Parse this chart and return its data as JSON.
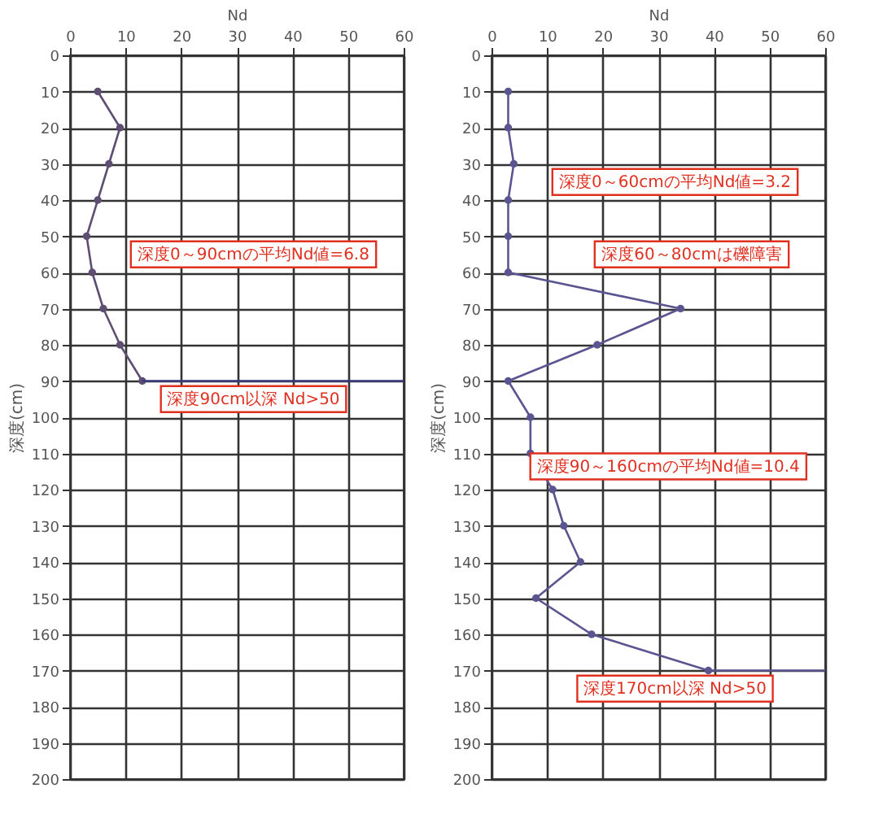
{
  "chart_data": [
    {
      "type": "line",
      "xlabel": "Nd",
      "ylabel": "深度(cm)",
      "xlim": [
        0,
        60
      ],
      "xticks": [
        0,
        10,
        20,
        30,
        40,
        50,
        60
      ],
      "ylim": [
        200,
        0
      ],
      "yticks": [
        0,
        10,
        20,
        30,
        40,
        50,
        60,
        70,
        80,
        90,
        100,
        110,
        120,
        130,
        140,
        150,
        160,
        170,
        180,
        190,
        200
      ],
      "grid": true,
      "line_style": "solid",
      "annotations": [
        "深度0～90cmの平均Nd値=6.8",
        "深度90cm以深 Nd>50"
      ],
      "series": [
        {
          "color": "#5e4f72",
          "marker": "circle",
          "x": [
            5,
            9,
            7,
            5,
            3,
            4,
            6,
            9,
            13
          ],
          "values": [
            10,
            20,
            30,
            40,
            50,
            60,
            70,
            80,
            90
          ]
        },
        {
          "color": "#3a3a80",
          "marker": "none",
          "x": [
            13,
            60
          ],
          "values": [
            90,
            90
          ]
        }
      ]
    },
    {
      "type": "line",
      "xlabel": "Nd",
      "ylabel": "深度(cm)",
      "xlim": [
        0,
        60
      ],
      "xticks": [
        0,
        10,
        20,
        30,
        40,
        50,
        60
      ],
      "ylim": [
        200,
        0
      ],
      "yticks": [
        0,
        10,
        20,
        30,
        40,
        50,
        60,
        70,
        80,
        90,
        100,
        110,
        120,
        130,
        140,
        150,
        160,
        170,
        180,
        190,
        200
      ],
      "grid": true,
      "line_style": "solid",
      "annotations": [
        "深度0～60cmの平均Nd値=3.2",
        "深度60～80cmは礫障害",
        "深度90～160cmの平均Nd値=10.4",
        "深度170cm以深 Nd>50"
      ],
      "series": [
        {
          "color": "#5a5590",
          "marker": "circle",
          "x": [
            3,
            3,
            4,
            3,
            3,
            3,
            34,
            19,
            3,
            7,
            7,
            11,
            13,
            16,
            8,
            18,
            39
          ],
          "values": [
            10,
            20,
            30,
            40,
            50,
            60,
            70,
            80,
            90,
            100,
            110,
            120,
            130,
            140,
            150,
            160,
            170
          ]
        },
        {
          "color": "#5a5590",
          "marker": "none",
          "x": [
            39,
            60
          ],
          "values": [
            170,
            170
          ]
        }
      ]
    }
  ]
}
